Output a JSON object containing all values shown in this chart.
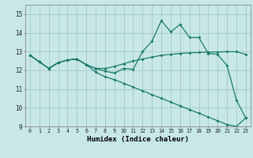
{
  "title": "",
  "xlabel": "Humidex (Indice chaleur)",
  "xlim": [
    -0.5,
    23.5
  ],
  "ylim": [
    9,
    15.5
  ],
  "yticks": [
    9,
    10,
    11,
    12,
    13,
    14,
    15
  ],
  "xticks": [
    0,
    1,
    2,
    3,
    4,
    5,
    6,
    7,
    8,
    9,
    10,
    11,
    12,
    13,
    14,
    15,
    16,
    17,
    18,
    19,
    20,
    21,
    22,
    23
  ],
  "background_color": "#c8e8e8",
  "grid_color": "#aacccc",
  "line_color": "#1a7a6a",
  "line1_x": [
    0,
    1,
    2,
    3,
    4,
    5,
    6,
    7,
    8,
    9,
    10,
    11,
    12,
    13,
    14,
    15,
    16,
    17,
    18,
    19,
    20,
    21,
    22,
    23
  ],
  "line1_y": [
    12.8,
    12.45,
    12.1,
    12.4,
    12.55,
    12.6,
    12.3,
    12.1,
    11.95,
    11.85,
    12.1,
    12.05,
    13.0,
    13.55,
    14.65,
    14.05,
    14.45,
    13.75,
    13.75,
    12.9,
    12.85,
    12.25,
    10.4,
    9.45
  ],
  "line2_x": [
    0,
    1,
    2,
    3,
    4,
    5,
    6,
    7,
    8,
    9,
    10,
    11,
    12,
    13,
    14,
    15,
    16,
    17,
    18,
    19,
    20,
    21,
    22,
    23
  ],
  "line2_y": [
    12.8,
    12.45,
    12.1,
    12.4,
    12.55,
    12.6,
    12.3,
    11.9,
    11.65,
    11.5,
    11.3,
    11.1,
    10.9,
    10.7,
    10.5,
    10.3,
    10.1,
    9.9,
    9.7,
    9.5,
    9.3,
    9.1,
    9.0,
    9.45
  ],
  "line3_x": [
    0,
    1,
    2,
    3,
    4,
    5,
    6,
    7,
    8,
    9,
    10,
    11,
    12,
    13,
    14,
    15,
    16,
    17,
    18,
    19,
    20,
    21,
    22,
    23
  ],
  "line3_y": [
    12.8,
    12.45,
    12.1,
    12.4,
    12.55,
    12.6,
    12.3,
    12.1,
    12.1,
    12.2,
    12.35,
    12.5,
    12.6,
    12.7,
    12.8,
    12.85,
    12.9,
    12.93,
    12.95,
    12.97,
    12.98,
    12.99,
    12.99,
    12.85
  ]
}
